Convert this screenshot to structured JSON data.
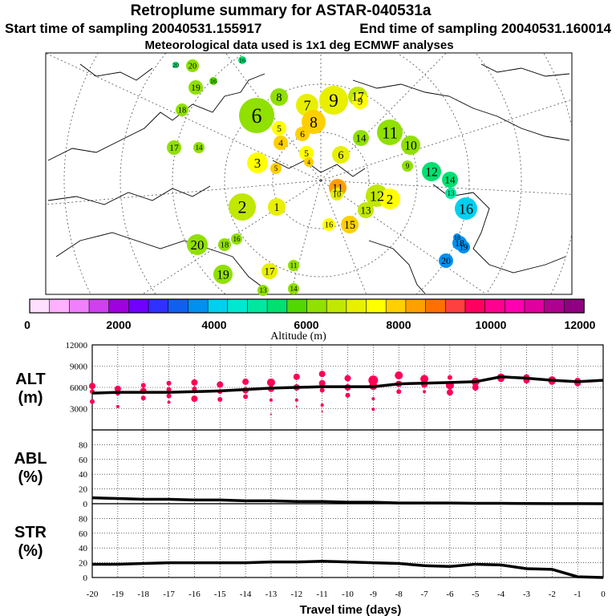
{
  "header": {
    "title": "Retroplume summary for ASTAR-040531a",
    "start": "Start time of sampling 20040531.155917",
    "end": "End time of sampling 20040531.160014",
    "met": "Meteorological data used is 1x1 deg ECMWF analyses"
  },
  "colorbar": {
    "label": "Altitude (m)",
    "ticks": [
      "0",
      "2000",
      "4000",
      "6000",
      "8000",
      "10000",
      "12000"
    ],
    "colors": [
      "#ffe0ff",
      "#ffb0ff",
      "#f080ff",
      "#d040f0",
      "#a000e0",
      "#7000ff",
      "#3030ff",
      "#1060f0",
      "#0090f0",
      "#00d0f0",
      "#00e8d0",
      "#00e8a0",
      "#00e070",
      "#50d800",
      "#90e000",
      "#c0e800",
      "#e8f000",
      "#ffff00",
      "#ffd000",
      "#ffa000",
      "#ff7000",
      "#ff4040",
      "#ff0060",
      "#ff0090",
      "#ff00b0",
      "#e000a0",
      "#b00090",
      "#900080"
    ]
  },
  "colors": {
    "alt_dot": "#ff0055",
    "line": "#000000"
  },
  "map": {
    "labels": [
      {
        "t": "20",
        "v": 6200
      },
      {
        "t": "19",
        "v": 6000
      },
      {
        "t": "18",
        "v": 6000
      },
      {
        "t": "17",
        "v": 6300
      },
      {
        "t": "14",
        "v": 6200
      },
      {
        "t": "16",
        "v": 5200
      },
      {
        "t": "20",
        "v": 5500
      },
      {
        "t": "16",
        "v": 5800
      },
      {
        "t": "6",
        "v": 6200
      },
      {
        "t": "8",
        "v": 6300
      },
      {
        "t": "7",
        "v": 7000
      },
      {
        "t": "9",
        "v": 7200
      },
      {
        "t": "17",
        "v": 6500
      },
      {
        "t": "9",
        "v": 7500
      },
      {
        "t": "8",
        "v": 8000
      },
      {
        "t": "5",
        "v": 7600
      },
      {
        "t": "4",
        "v": 7900
      },
      {
        "t": "6",
        "v": 7800
      },
      {
        "t": "5",
        "v": 7700
      },
      {
        "t": "11",
        "v": 6400
      },
      {
        "t": "10",
        "v": 6000
      },
      {
        "t": "9",
        "v": 6000
      },
      {
        "t": "12",
        "v": 5400
      },
      {
        "t": "14",
        "v": 5200
      },
      {
        "t": "13",
        "v": 5000
      },
      {
        "t": "16",
        "v": 4000
      },
      {
        "t": "18",
        "v": 3600
      },
      {
        "t": "3",
        "v": 7700
      },
      {
        "t": "5",
        "v": 7800
      },
      {
        "t": "4",
        "v": 7800
      },
      {
        "t": "6",
        "v": 7000
      },
      {
        "t": "11",
        "v": 8200
      },
      {
        "t": "2",
        "v": 6700
      },
      {
        "t": "1",
        "v": 6900
      },
      {
        "t": "12",
        "v": 6800
      },
      {
        "t": "13",
        "v": 6800
      },
      {
        "t": "2",
        "v": 7500
      },
      {
        "t": "20",
        "v": 6300
      },
      {
        "t": "18",
        "v": 6200
      },
      {
        "t": "16",
        "v": 6400
      },
      {
        "t": "19",
        "v": 6000
      },
      {
        "t": "17",
        "v": 7000
      },
      {
        "t": "13",
        "v": 6200
      },
      {
        "t": "11",
        "v": 6300
      },
      {
        "t": "14",
        "v": 6400
      },
      {
        "t": "10",
        "v": 7000
      },
      {
        "t": "20",
        "v": 3500
      },
      {
        "t": "14",
        "v": 6000
      },
      {
        "t": "18",
        "v": 3500
      },
      {
        "t": "19",
        "v": 3500
      },
      {
        "t": "15",
        "v": 7800
      },
      {
        "t": "16",
        "v": 7600
      }
    ]
  },
  "chart_data": [
    {
      "type": "scatter",
      "name": "ALT",
      "ylabel_top": "ALT",
      "ylabel_bottom": "(m)",
      "ylim": [
        0,
        12000
      ],
      "ytick_labels": [
        "3000",
        "6000",
        "9000",
        "12000"
      ],
      "xlim": [
        -20,
        0
      ],
      "x": [
        -20,
        -19,
        -18,
        -17,
        -16,
        -15,
        -14,
        -13,
        -12,
        -11,
        -10,
        -9,
        -8,
        -7,
        -6,
        -5,
        -4,
        -3,
        -2,
        -1,
        0
      ],
      "mean_line": [
        5200,
        5300,
        5300,
        5300,
        5400,
        5500,
        5700,
        5900,
        6000,
        6100,
        6100,
        6100,
        6500,
        6600,
        6700,
        6800,
        7500,
        7300,
        7000,
        6800,
        7000
      ],
      "dots": [
        {
          "x": -20,
          "y": 6200,
          "s": 4
        },
        {
          "x": -20,
          "y": 5400,
          "s": 3
        },
        {
          "x": -20,
          "y": 4000,
          "s": 3
        },
        {
          "x": -19,
          "y": 5800,
          "s": 4
        },
        {
          "x": -19,
          "y": 5200,
          "s": 3
        },
        {
          "x": -19,
          "y": 3300,
          "s": 2
        },
        {
          "x": -18,
          "y": 6300,
          "s": 3
        },
        {
          "x": -18,
          "y": 5500,
          "s": 4
        },
        {
          "x": -18,
          "y": 4500,
          "s": 3
        },
        {
          "x": -17,
          "y": 6600,
          "s": 3
        },
        {
          "x": -17,
          "y": 5700,
          "s": 3
        },
        {
          "x": -17,
          "y": 4800,
          "s": 3
        },
        {
          "x": -17,
          "y": 3900,
          "s": 2
        },
        {
          "x": -16,
          "y": 6700,
          "s": 4
        },
        {
          "x": -16,
          "y": 5800,
          "s": 3
        },
        {
          "x": -16,
          "y": 4400,
          "s": 4
        },
        {
          "x": -15,
          "y": 6400,
          "s": 4
        },
        {
          "x": -15,
          "y": 5400,
          "s": 3
        },
        {
          "x": -15,
          "y": 4300,
          "s": 3
        },
        {
          "x": -14,
          "y": 6800,
          "s": 4
        },
        {
          "x": -14,
          "y": 5600,
          "s": 4
        },
        {
          "x": -14,
          "y": 4700,
          "s": 3
        },
        {
          "x": -13,
          "y": 6700,
          "s": 5
        },
        {
          "x": -13,
          "y": 5800,
          "s": 4
        },
        {
          "x": -13,
          "y": 4200,
          "s": 2
        },
        {
          "x": -13,
          "y": 2200,
          "s": 1
        },
        {
          "x": -12,
          "y": 7500,
          "s": 4
        },
        {
          "x": -12,
          "y": 6000,
          "s": 4
        },
        {
          "x": -12,
          "y": 4200,
          "s": 2
        },
        {
          "x": -12,
          "y": 3300,
          "s": 1
        },
        {
          "x": -11,
          "y": 7900,
          "s": 4
        },
        {
          "x": -11,
          "y": 6600,
          "s": 4
        },
        {
          "x": -11,
          "y": 5600,
          "s": 3
        },
        {
          "x": -11,
          "y": 3500,
          "s": 2
        },
        {
          "x": -11,
          "y": 2600,
          "s": 1
        },
        {
          "x": -10,
          "y": 7300,
          "s": 4
        },
        {
          "x": -10,
          "y": 6000,
          "s": 4
        },
        {
          "x": -10,
          "y": 4900,
          "s": 3
        },
        {
          "x": -9,
          "y": 7000,
          "s": 6
        },
        {
          "x": -9,
          "y": 6200,
          "s": 5
        },
        {
          "x": -9,
          "y": 4400,
          "s": 2
        },
        {
          "x": -9,
          "y": 2900,
          "s": 2
        },
        {
          "x": -8,
          "y": 7700,
          "s": 5
        },
        {
          "x": -8,
          "y": 6500,
          "s": 4
        },
        {
          "x": -8,
          "y": 5400,
          "s": 3
        },
        {
          "x": -7,
          "y": 7200,
          "s": 5
        },
        {
          "x": -7,
          "y": 6400,
          "s": 4
        },
        {
          "x": -7,
          "y": 5400,
          "s": 2
        },
        {
          "x": -6,
          "y": 7400,
          "s": 3
        },
        {
          "x": -6,
          "y": 6300,
          "s": 5
        },
        {
          "x": -6,
          "y": 5300,
          "s": 4
        },
        {
          "x": -5,
          "y": 6800,
          "s": 5
        },
        {
          "x": -5,
          "y": 6000,
          "s": 4
        },
        {
          "x": -4,
          "y": 7400,
          "s": 5
        },
        {
          "x": -4,
          "y": 7200,
          "s": 4
        },
        {
          "x": -3,
          "y": 7400,
          "s": 4
        },
        {
          "x": -3,
          "y": 7000,
          "s": 4
        },
        {
          "x": -2,
          "y": 7000,
          "s": 5
        },
        {
          "x": -2,
          "y": 6800,
          "s": 4
        },
        {
          "x": -1,
          "y": 6900,
          "s": 4
        },
        {
          "x": -1,
          "y": 6600,
          "s": 4
        }
      ]
    },
    {
      "type": "line",
      "name": "ABL",
      "ylabel_top": "ABL",
      "ylabel_bottom": "(%)",
      "ylim": [
        0,
        100
      ],
      "ytick_labels": [
        "0",
        "20",
        "40",
        "60",
        "80"
      ],
      "xlim": [
        -20,
        0
      ],
      "x": [
        -20,
        -19,
        -18,
        -17,
        -16,
        -15,
        -14,
        -13,
        -12,
        -11,
        -10,
        -9,
        -8,
        -7,
        -6,
        -5,
        -4,
        -3,
        -2,
        -1,
        0
      ],
      "values": [
        8,
        7,
        6,
        6,
        5,
        5,
        4,
        4,
        3,
        3,
        2,
        2,
        1,
        1,
        1,
        0.5,
        0.5,
        0.3,
        0.2,
        0.1,
        0
      ]
    },
    {
      "type": "line",
      "name": "STR",
      "ylabel_top": "STR",
      "ylabel_bottom": "(%)",
      "ylim": [
        0,
        100
      ],
      "ytick_labels": [
        "0",
        "20",
        "40",
        "60",
        "80"
      ],
      "xlim": [
        -20,
        0
      ],
      "x": [
        -20,
        -19,
        -18,
        -17,
        -16,
        -15,
        -14,
        -13,
        -12,
        -11,
        -10,
        -9,
        -8,
        -7,
        -6,
        -5,
        -4,
        -3,
        -2,
        -1,
        0
      ],
      "values": [
        18,
        18,
        19,
        20,
        20,
        20,
        20,
        21,
        21,
        22,
        21,
        20,
        19,
        16,
        15,
        18,
        17,
        12,
        11,
        1,
        0
      ],
      "xlabel": "Travel time (days)",
      "xtick_labels": [
        "-20",
        "-19",
        "-18",
        "-17",
        "-16",
        "-15",
        "-14",
        "-13",
        "-12",
        "-11",
        "-10",
        "-9",
        "-8",
        "-7",
        "-6",
        "-5",
        "-4",
        "-3",
        "-2",
        "-1",
        "0"
      ]
    }
  ]
}
